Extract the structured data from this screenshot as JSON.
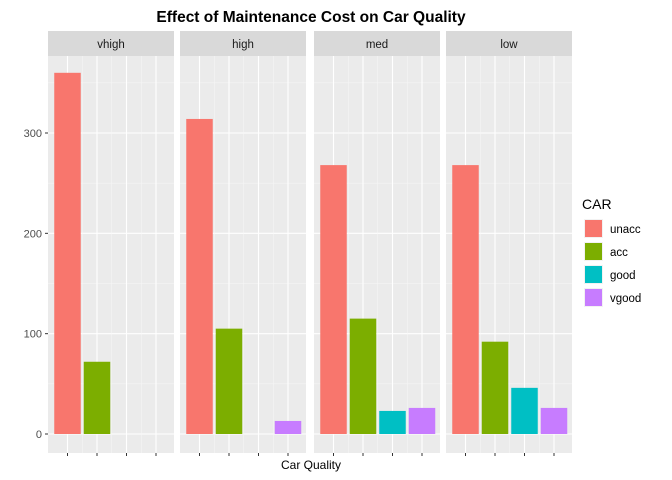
{
  "chart_data": {
    "type": "bar",
    "title": "Effect of Maintenance Cost on Car Quality",
    "xlabel": "Car Quality",
    "ylabel": "",
    "ylim": [
      0,
      380
    ],
    "yticks": [
      0,
      100,
      200,
      300
    ],
    "grid": true,
    "legend_position": "right",
    "legend": {
      "title": "CAR",
      "entries": [
        "unacc",
        "acc",
        "good",
        "vgood"
      ]
    },
    "categories": [
      "unacc",
      "acc",
      "good",
      "vgood"
    ],
    "colors": {
      "unacc": "#F8766D",
      "acc": "#7CAE00",
      "good": "#00BFC4",
      "vgood": "#C77CFF"
    },
    "facets": [
      {
        "label": "vhigh",
        "values": [
          360,
          72,
          0,
          0
        ]
      },
      {
        "label": "high",
        "values": [
          314,
          105,
          0,
          13
        ]
      },
      {
        "label": "med",
        "values": [
          268,
          115,
          23,
          26
        ]
      },
      {
        "label": "low",
        "values": [
          268,
          92,
          46,
          26
        ]
      }
    ]
  }
}
